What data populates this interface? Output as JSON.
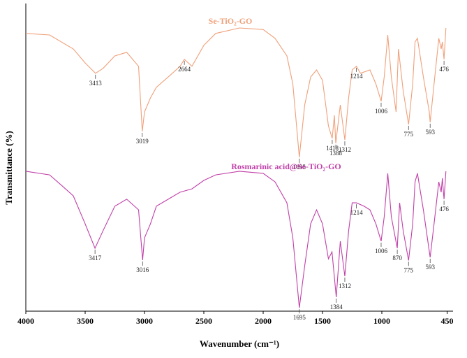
{
  "chart_data": {
    "type": "line",
    "xlabel": "Wavenumber (cm⁻¹)",
    "ylabel": "Transmittance (%)",
    "xlim": [
      4000,
      400
    ],
    "ylim": [
      0,
      100
    ],
    "xticks": [
      4000,
      3500,
      3000,
      2500,
      2000,
      1500,
      1000,
      450
    ],
    "series": [
      {
        "name": "Se-TiO₂-GO",
        "color": "#f0a07a",
        "x": [
          4000,
          3800,
          3600,
          3500,
          3413,
          3350,
          3250,
          3150,
          3050,
          3019,
          3000,
          2950,
          2900,
          2800,
          2700,
          2664,
          2600,
          2500,
          2400,
          2200,
          2000,
          1900,
          1800,
          1750,
          1695,
          1650,
          1600,
          1550,
          1500,
          1450,
          1418,
          1400,
          1388,
          1350,
          1312,
          1280,
          1250,
          1214,
          1180,
          1100,
          1050,
          1006,
          980,
          950,
          920,
          880,
          860,
          820,
          775,
          740,
          720,
          700,
          650,
          600,
          593,
          560,
          520,
          500,
          490,
          476,
          460
        ],
        "values": [
          91.3,
          90.8,
          86.2,
          81.6,
          78.2,
          79.8,
          83.9,
          85.1,
          80.5,
          59.1,
          65.5,
          70.1,
          73.6,
          77.0,
          80.5,
          82.8,
          80.5,
          87.4,
          91.3,
          93.1,
          92.6,
          89.7,
          83.9,
          74.7,
          50.6,
          67.8,
          77.0,
          79.3,
          75.9,
          60.9,
          56.8,
          64.4,
          55.2,
          67.8,
          56.3,
          70.1,
          79.3,
          80.5,
          78.2,
          79.3,
          74.7,
          69.0,
          77.0,
          90.8,
          77.0,
          65.5,
          86.2,
          72.4,
          61.4,
          74.7,
          88.5,
          89.7,
          77.0,
          65.5,
          62.1,
          74.7,
          89.7,
          86.2,
          88.5,
          82.8,
          93.1
        ],
        "peaks": [
          3413,
          3019,
          2664,
          1695,
          1418,
          1388,
          1312,
          1214,
          1006,
          775,
          593,
          476
        ]
      },
      {
        "name": "Rosmarinic acid@Se-TiO₂-GO",
        "color": "#c040a8",
        "x": [
          4000,
          3800,
          3700,
          3600,
          3500,
          3417,
          3350,
          3250,
          3150,
          3050,
          3016,
          3000,
          2950,
          2900,
          2800,
          2700,
          2600,
          2500,
          2400,
          2200,
          2000,
          1900,
          1800,
          1750,
          1695,
          1650,
          1600,
          1550,
          1500,
          1450,
          1420,
          1384,
          1350,
          1312,
          1280,
          1250,
          1214,
          1150,
          1100,
          1050,
          1006,
          980,
          950,
          920,
          870,
          850,
          820,
          775,
          740,
          720,
          700,
          650,
          593,
          560,
          520,
          500,
          490,
          476,
          460
        ],
        "values": [
          46.0,
          44.8,
          41.4,
          37.9,
          28.7,
          20.7,
          26.4,
          34.5,
          36.8,
          33.3,
          16.8,
          24.1,
          28.7,
          34.5,
          36.8,
          39.1,
          40.2,
          43.0,
          44.8,
          46.0,
          45.3,
          42.5,
          35.6,
          24.1,
          1.1,
          14.9,
          28.7,
          33.3,
          28.7,
          17.2,
          19.5,
          4.6,
          23.0,
          11.5,
          26.4,
          35.6,
          35.6,
          34.5,
          33.3,
          28.7,
          23.0,
          31.0,
          45.3,
          31.0,
          20.7,
          35.6,
          26.4,
          16.7,
          28.7,
          42.5,
          45.3,
          33.3,
          17.7,
          28.7,
          42.5,
          39.1,
          43.7,
          36.8,
          46.0
        ],
        "peaks": [
          3417,
          3016,
          1695,
          1384,
          1312,
          1214,
          1006,
          870,
          775,
          593,
          476
        ]
      }
    ]
  }
}
